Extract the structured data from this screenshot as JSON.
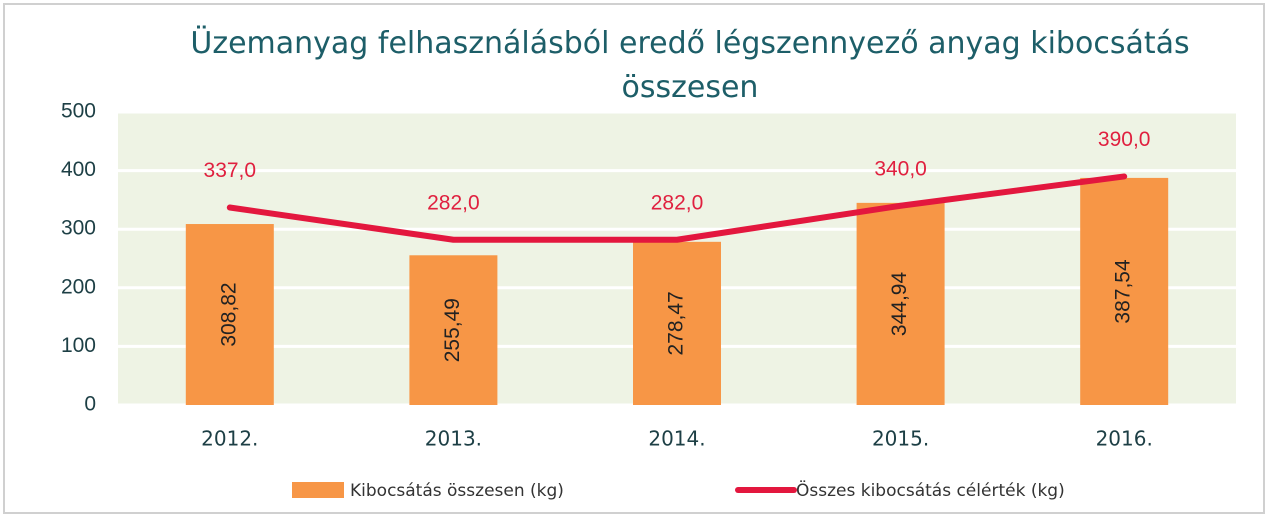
{
  "chart_data": {
    "type": "bar",
    "title": "Üzemanyag felhasználásból eredő  légszennyező anyag kibocsátás összesen",
    "categories": [
      "2012.",
      "2013.",
      "2014.",
      "2015.",
      "2016."
    ],
    "series": [
      {
        "name": "Kibocsátás összesen (kg)",
        "type": "bar",
        "color": "#f79646",
        "values": [
          308.82,
          255.49,
          278.47,
          344.94,
          387.54
        ],
        "value_labels": [
          "308,82",
          "255,49",
          "278,47",
          "344,94",
          "387,54"
        ]
      },
      {
        "name": "Összes kibocsátás célérték (kg)",
        "type": "line",
        "color": "#e3173e",
        "values": [
          337,
          282,
          282,
          340,
          390
        ],
        "value_labels": [
          "337,0",
          "282,0",
          "282,0",
          "340,0",
          "390,0"
        ]
      }
    ],
    "ylim": [
      0,
      500
    ],
    "yticks": [
      0,
      100,
      200,
      300,
      400,
      500
    ],
    "grid": true,
    "legend": "bottom"
  }
}
